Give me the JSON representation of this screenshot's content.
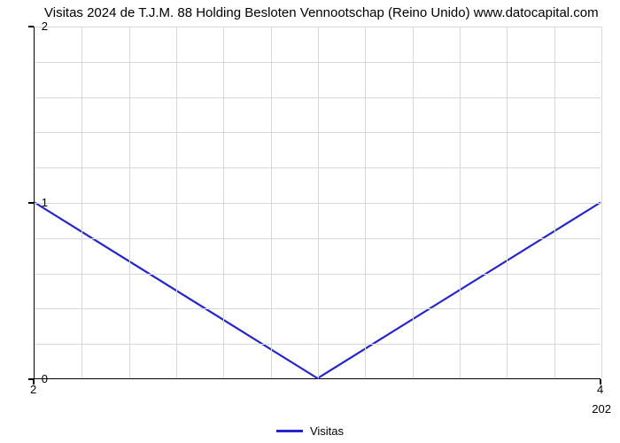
{
  "chart": {
    "type": "line",
    "title": "Visitas 2024 de T.J.M. 88 Holding Besloten Vennootschap (Reino Unido) www.datocapital.com",
    "title_fontsize": 15,
    "title_color": "#000000",
    "series_name": "Visitas",
    "data": {
      "x": [
        2,
        3,
        4
      ],
      "y": [
        1,
        0,
        1
      ]
    },
    "line_color": "#2525c8",
    "line_width": 2.2,
    "background_color": "#ffffff",
    "grid_color": "#d8d8d8",
    "axis_color": "#000000",
    "xlim": [
      2,
      4
    ],
    "ylim": [
      0,
      2
    ],
    "y_ticks": [
      0,
      1,
      2
    ],
    "x_ticks": [
      2,
      4
    ],
    "x_right_truncated": "202",
    "grid_v_count": 12,
    "grid_h_count": 10,
    "label_fontsize": 13
  }
}
